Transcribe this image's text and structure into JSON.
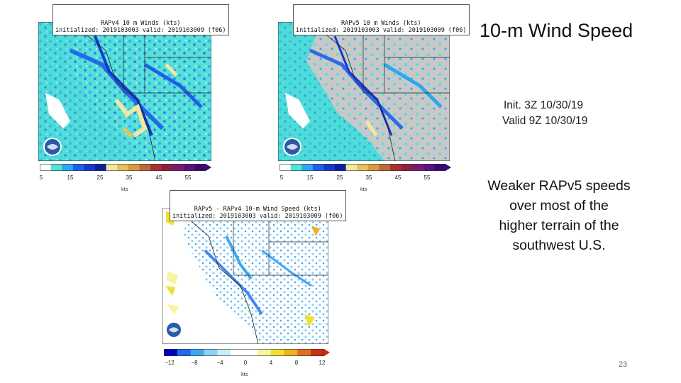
{
  "slide": {
    "title": "10-m Wind Speed",
    "init_line": "Init. 3Z 10/30/19",
    "valid_line": "Valid 9Z 10/30/19",
    "comment_lines": [
      "Weaker RAPv5 speeds",
      "over most of the",
      "higher terrain of the",
      "southwest U.S."
    ],
    "page_number": "23"
  },
  "maps": {
    "rapv4": {
      "title": "RAPv4 10 m Winds (kts)",
      "subtitle": "initialized: 2019103003 valid: 2019103009 (f06)",
      "colorbar_ticks": [
        "5",
        "15",
        "25",
        "35",
        "45",
        "55"
      ],
      "units": "kts"
    },
    "rapv5": {
      "title": "RAPv5 10 m Winds (kts)",
      "subtitle": "initialized: 2019103003 valid: 2019103009 (f06)",
      "colorbar_ticks": [
        "5",
        "15",
        "25",
        "35",
        "45",
        "55"
      ],
      "units": "kts"
    },
    "diff": {
      "title": "RAPv5 - RAPv4 10-m Wind Speed (kts)",
      "subtitle": "initialized: 2019103003 valid: 2019103009 (f06)",
      "colorbar_ticks": [
        "−12",
        "−8",
        "−4",
        "0",
        "4",
        "8",
        "12"
      ],
      "units": "kts"
    }
  },
  "colors": {
    "speed_scale": [
      "#ffffff",
      "#56e0d8",
      "#2aa8f0",
      "#1f5fe8",
      "#1838c8",
      "#0c1ea0",
      "#f2e8a0",
      "#e8c060",
      "#d89a40",
      "#c06838",
      "#a83030",
      "#8e2040",
      "#7a1a70",
      "#5a1080",
      "#3a0870"
    ],
    "diff_scale": [
      "#0000c0",
      "#1e6ae8",
      "#3fa7f0",
      "#8fd0f4",
      "#c8ecf8",
      "#ffffff",
      "#ffffff",
      "#f8f4a0",
      "#f2e030",
      "#f0b020",
      "#e07020",
      "#c83010"
    ],
    "ocean": "#46d8d8",
    "land_gray": "#c8c8c8",
    "noaa_blue": "#2a5aa8"
  }
}
